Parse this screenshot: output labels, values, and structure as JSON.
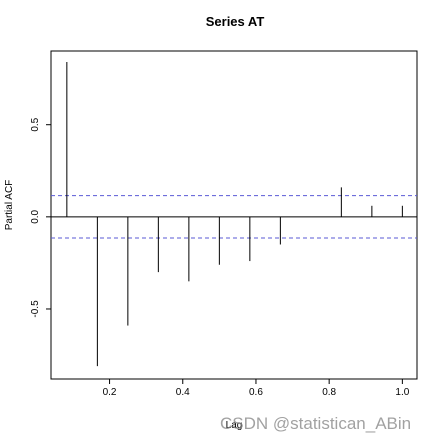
{
  "chart_data": {
    "type": "bar",
    "title": "Series  AT",
    "xlabel": "Lag",
    "ylabel": "Partial ACF",
    "xlim": [
      0.04,
      1.04
    ],
    "ylim": [
      -0.88,
      0.9
    ],
    "x_ticks": [
      0.2,
      0.4,
      0.6,
      0.8,
      1.0
    ],
    "x_tick_labels": [
      "0.2",
      "0.4",
      "0.6",
      "0.8",
      "1.0"
    ],
    "y_ticks": [
      -0.5,
      0.0,
      0.5
    ],
    "y_tick_labels": [
      "-0.5",
      "0.0",
      "0.5"
    ],
    "confidence_band": 0.115,
    "x": [
      0.0833,
      0.1667,
      0.25,
      0.3333,
      0.4167,
      0.5,
      0.5833,
      0.6667,
      0.75,
      0.8333,
      0.9167,
      1.0
    ],
    "values": [
      0.84,
      -0.81,
      -0.59,
      -0.3,
      -0.35,
      -0.26,
      -0.24,
      -0.15,
      0.0,
      0.16,
      0.06,
      0.06
    ],
    "grid": false,
    "colors": {
      "bars": "#000000",
      "confidence": "#5a5ad6",
      "zero_line": "#000000"
    }
  },
  "watermark": "CSDN @statistican_ABin"
}
